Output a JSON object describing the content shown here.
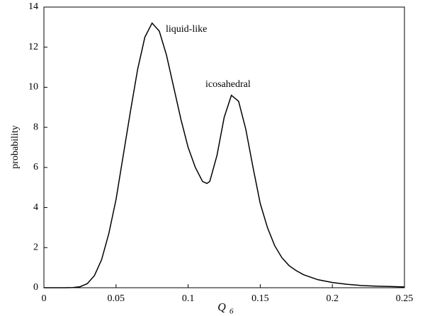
{
  "chart_data": {
    "type": "line",
    "xlabel": "Q",
    "xlabel_sub": "6",
    "ylabel": "probability",
    "annotations": [
      "liquid-like",
      "icosahedral"
    ],
    "x": [
      0,
      0.005,
      0.01,
      0.015,
      0.02,
      0.025,
      0.03,
      0.035,
      0.04,
      0.045,
      0.05,
      0.055,
      0.06,
      0.065,
      0.07,
      0.075,
      0.08,
      0.085,
      0.09,
      0.095,
      0.1,
      0.105,
      0.11,
      0.113,
      0.115,
      0.12,
      0.125,
      0.13,
      0.135,
      0.14,
      0.145,
      0.15,
      0.155,
      0.16,
      0.165,
      0.17,
      0.175,
      0.18,
      0.19,
      0.2,
      0.21,
      0.22,
      0.23,
      0.24,
      0.25
    ],
    "series": [
      {
        "color": "#000000",
        "values": [
          0,
          0,
          0,
          0,
          0.01,
          0.05,
          0.2,
          0.6,
          1.4,
          2.7,
          4.4,
          6.6,
          8.8,
          10.9,
          12.5,
          13.2,
          12.8,
          11.6,
          10.0,
          8.4,
          7.0,
          6.0,
          5.3,
          5.2,
          5.3,
          6.6,
          8.5,
          9.6,
          9.3,
          7.9,
          6.0,
          4.2,
          3.0,
          2.1,
          1.5,
          1.1,
          0.85,
          0.65,
          0.4,
          0.26,
          0.17,
          0.11,
          0.08,
          0.06,
          0.04
        ]
      }
    ],
    "xlim": [
      0,
      0.25
    ],
    "xticks": [
      0,
      0.05,
      0.1,
      0.15,
      0.2,
      0.25
    ],
    "ylim": [
      0,
      14
    ],
    "yticks": [
      0,
      2,
      4,
      6,
      8,
      10,
      12,
      14
    ]
  }
}
